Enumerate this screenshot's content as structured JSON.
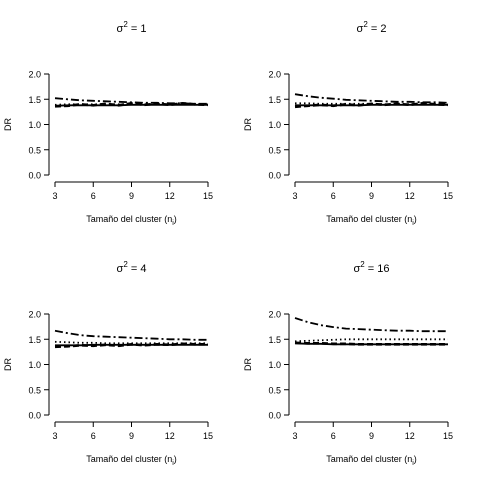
{
  "chart_data": [
    {
      "type": "line",
      "title_base": "σ",
      "title_sup": "2",
      "title_rest": " = 1",
      "xlabel_base": "Tamaño del cluster (n",
      "xlabel_sub": "i",
      "xlabel_end": ")",
      "ylabel": "DR",
      "xlim": [
        3,
        15
      ],
      "ylim": [
        0,
        2
      ],
      "xticks": [
        3,
        6,
        9,
        12,
        15
      ],
      "yticks": [
        "0.0",
        "0.5",
        "1.0",
        "1.5",
        "2.0"
      ],
      "x": [
        3,
        4,
        5,
        6,
        7,
        8,
        9,
        10,
        11,
        12,
        13,
        14,
        15
      ],
      "series": [
        {
          "style": "solid",
          "values": [
            1.37,
            1.38,
            1.38,
            1.38,
            1.38,
            1.38,
            1.39,
            1.39,
            1.39,
            1.39,
            1.39,
            1.39,
            1.39
          ]
        },
        {
          "style": "dashed",
          "values": [
            1.36,
            1.37,
            1.4,
            1.38,
            1.41,
            1.38,
            1.42,
            1.39,
            1.41,
            1.39,
            1.42,
            1.4,
            1.39
          ]
        },
        {
          "style": "dotted",
          "values": [
            1.39,
            1.4,
            1.4,
            1.4,
            1.4,
            1.4,
            1.4,
            1.4,
            1.4,
            1.4,
            1.4,
            1.4,
            1.4
          ]
        },
        {
          "style": "dashdot",
          "values": [
            1.52,
            1.5,
            1.48,
            1.47,
            1.46,
            1.45,
            1.44,
            1.43,
            1.43,
            1.42,
            1.42,
            1.41,
            1.41
          ]
        }
      ]
    },
    {
      "type": "line",
      "title_base": "σ",
      "title_sup": "2",
      "title_rest": " = 2",
      "xlabel_base": "Tamaño del cluster (n",
      "xlabel_sub": "i",
      "xlabel_end": ")",
      "ylabel": "DR",
      "xlim": [
        3,
        15
      ],
      "ylim": [
        0,
        2
      ],
      "xticks": [
        3,
        6,
        9,
        12,
        15
      ],
      "yticks": [
        "0.0",
        "0.5",
        "1.0",
        "1.5",
        "2.0"
      ],
      "x": [
        3,
        4,
        5,
        6,
        7,
        8,
        9,
        10,
        11,
        12,
        13,
        14,
        15
      ],
      "series": [
        {
          "style": "solid",
          "values": [
            1.38,
            1.38,
            1.38,
            1.38,
            1.38,
            1.38,
            1.39,
            1.39,
            1.39,
            1.39,
            1.39,
            1.39,
            1.39
          ]
        },
        {
          "style": "dashed",
          "values": [
            1.35,
            1.37,
            1.39,
            1.37,
            1.4,
            1.38,
            1.41,
            1.39,
            1.41,
            1.39,
            1.42,
            1.4,
            1.39
          ]
        },
        {
          "style": "dotted",
          "values": [
            1.42,
            1.42,
            1.41,
            1.41,
            1.41,
            1.41,
            1.41,
            1.4,
            1.4,
            1.4,
            1.4,
            1.4,
            1.4
          ]
        },
        {
          "style": "dashdot",
          "values": [
            1.6,
            1.56,
            1.53,
            1.51,
            1.49,
            1.48,
            1.47,
            1.46,
            1.45,
            1.45,
            1.44,
            1.44,
            1.43
          ]
        }
      ]
    },
    {
      "type": "line",
      "title_base": "σ",
      "title_sup": "2",
      "title_rest": " = 4",
      "xlabel_base": "Tamaño del cluster (n",
      "xlabel_sub": "i",
      "xlabel_end": ")",
      "ylabel": "DR",
      "xlim": [
        3,
        15
      ],
      "ylim": [
        0,
        2
      ],
      "xticks": [
        3,
        6,
        9,
        12,
        15
      ],
      "yticks": [
        "0.0",
        "0.5",
        "1.0",
        "1.5",
        "2.0"
      ],
      "x": [
        3,
        4,
        5,
        6,
        7,
        8,
        9,
        10,
        11,
        12,
        13,
        14,
        15
      ],
      "series": [
        {
          "style": "solid",
          "values": [
            1.38,
            1.38,
            1.38,
            1.39,
            1.39,
            1.39,
            1.39,
            1.39,
            1.39,
            1.39,
            1.39,
            1.39,
            1.39
          ]
        },
        {
          "style": "dashed",
          "values": [
            1.35,
            1.36,
            1.38,
            1.37,
            1.39,
            1.37,
            1.4,
            1.38,
            1.4,
            1.39,
            1.41,
            1.4,
            1.4
          ]
        },
        {
          "style": "dotted",
          "values": [
            1.45,
            1.44,
            1.43,
            1.43,
            1.42,
            1.42,
            1.42,
            1.42,
            1.42,
            1.42,
            1.42,
            1.42,
            1.42
          ]
        },
        {
          "style": "dashdot",
          "values": [
            1.67,
            1.62,
            1.58,
            1.56,
            1.55,
            1.54,
            1.53,
            1.52,
            1.51,
            1.5,
            1.5,
            1.49,
            1.49
          ]
        }
      ]
    },
    {
      "type": "line",
      "title_base": "σ",
      "title_sup": "2",
      "title_rest": " = 16",
      "xlabel_base": "Tamaño del cluster (n",
      "xlabel_sub": "i",
      "xlabel_end": ")",
      "ylabel": "DR",
      "xlim": [
        3,
        15
      ],
      "ylim": [
        0,
        2
      ],
      "xticks": [
        3,
        6,
        9,
        12,
        15
      ],
      "yticks": [
        "0.0",
        "0.5",
        "1.0",
        "1.5",
        "2.0"
      ],
      "x": [
        3,
        4,
        5,
        6,
        7,
        8,
        9,
        10,
        11,
        12,
        13,
        14,
        15
      ],
      "series": [
        {
          "style": "solid",
          "values": [
            1.42,
            1.41,
            1.41,
            1.4,
            1.4,
            1.4,
            1.4,
            1.4,
            1.4,
            1.4,
            1.4,
            1.4,
            1.4
          ]
        },
        {
          "style": "dashed",
          "values": [
            1.43,
            1.42,
            1.42,
            1.41,
            1.41,
            1.4,
            1.4,
            1.4,
            1.4,
            1.4,
            1.4,
            1.4,
            1.4
          ]
        },
        {
          "style": "dotted",
          "values": [
            1.46,
            1.47,
            1.48,
            1.49,
            1.5,
            1.5,
            1.5,
            1.5,
            1.5,
            1.5,
            1.5,
            1.5,
            1.5
          ]
        },
        {
          "style": "dashdot",
          "values": [
            1.92,
            1.84,
            1.78,
            1.74,
            1.71,
            1.7,
            1.69,
            1.68,
            1.67,
            1.67,
            1.66,
            1.66,
            1.66
          ]
        }
      ]
    }
  ]
}
